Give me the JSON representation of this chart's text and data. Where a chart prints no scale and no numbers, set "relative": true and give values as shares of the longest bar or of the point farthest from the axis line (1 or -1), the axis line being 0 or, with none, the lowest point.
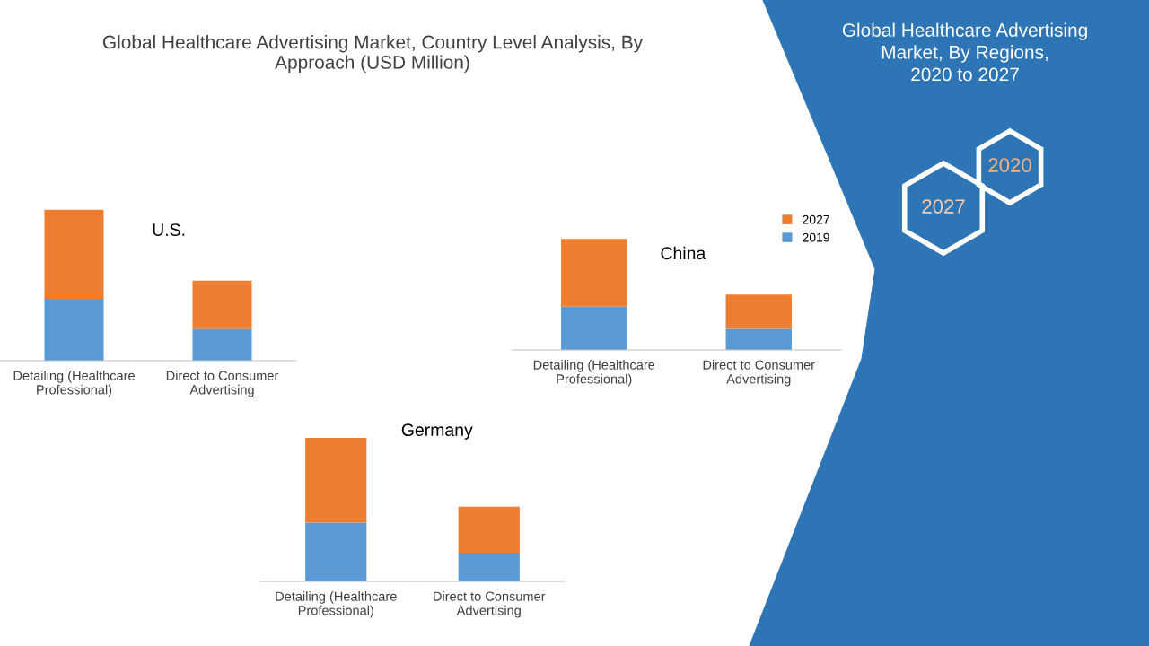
{
  "chart_data": [
    {
      "type": "other",
      "title": "Global Healthcare Advertising Market, Country Level Analysis, By\nApproach (USD Million)"
    },
    {
      "type": "bar",
      "title": "U.S.",
      "stacked": true,
      "relative": true,
      "categories": [
        "Detailing (Healthcare\nProfessional)",
        "Direct to Consumer\nAdvertising"
      ],
      "series": [
        {
          "color": "#5b9bd5",
          "values": [
            0.41,
            0.21
          ]
        },
        {
          "color": "#ed7d31",
          "values": [
            0.59,
            0.32
          ]
        }
      ]
    },
    {
      "type": "bar",
      "title": "China",
      "stacked": true,
      "relative": true,
      "legend": "top right",
      "categories": [
        "Detailing (Healthcare\nProfessional)",
        "Direct to Consumer\nAdvertising"
      ],
      "series": [
        {
          "name": "2019",
          "color": "#5b9bd5",
          "values": [
            0.39,
            0.19
          ]
        },
        {
          "name": "2027",
          "color": "#ed7d31",
          "values": [
            0.61,
            0.31
          ]
        }
      ]
    },
    {
      "type": "bar",
      "title": "Germany",
      "stacked": true,
      "relative": true,
      "categories": [
        "Detailing (Healthcare\nProfessional)",
        "Direct to Consumer\nAdvertising"
      ],
      "series": [
        {
          "color": "#5b9bd5",
          "values": [
            0.41,
            0.2
          ]
        },
        {
          "color": "#ed7d31",
          "values": [
            0.59,
            0.32
          ]
        }
      ]
    },
    {
      "type": "other",
      "title": "Global Healthcare Advertising\nMarket, By Regions,\n2020 to 2027",
      "annotations": [
        "2020",
        "2027"
      ]
    }
  ]
}
